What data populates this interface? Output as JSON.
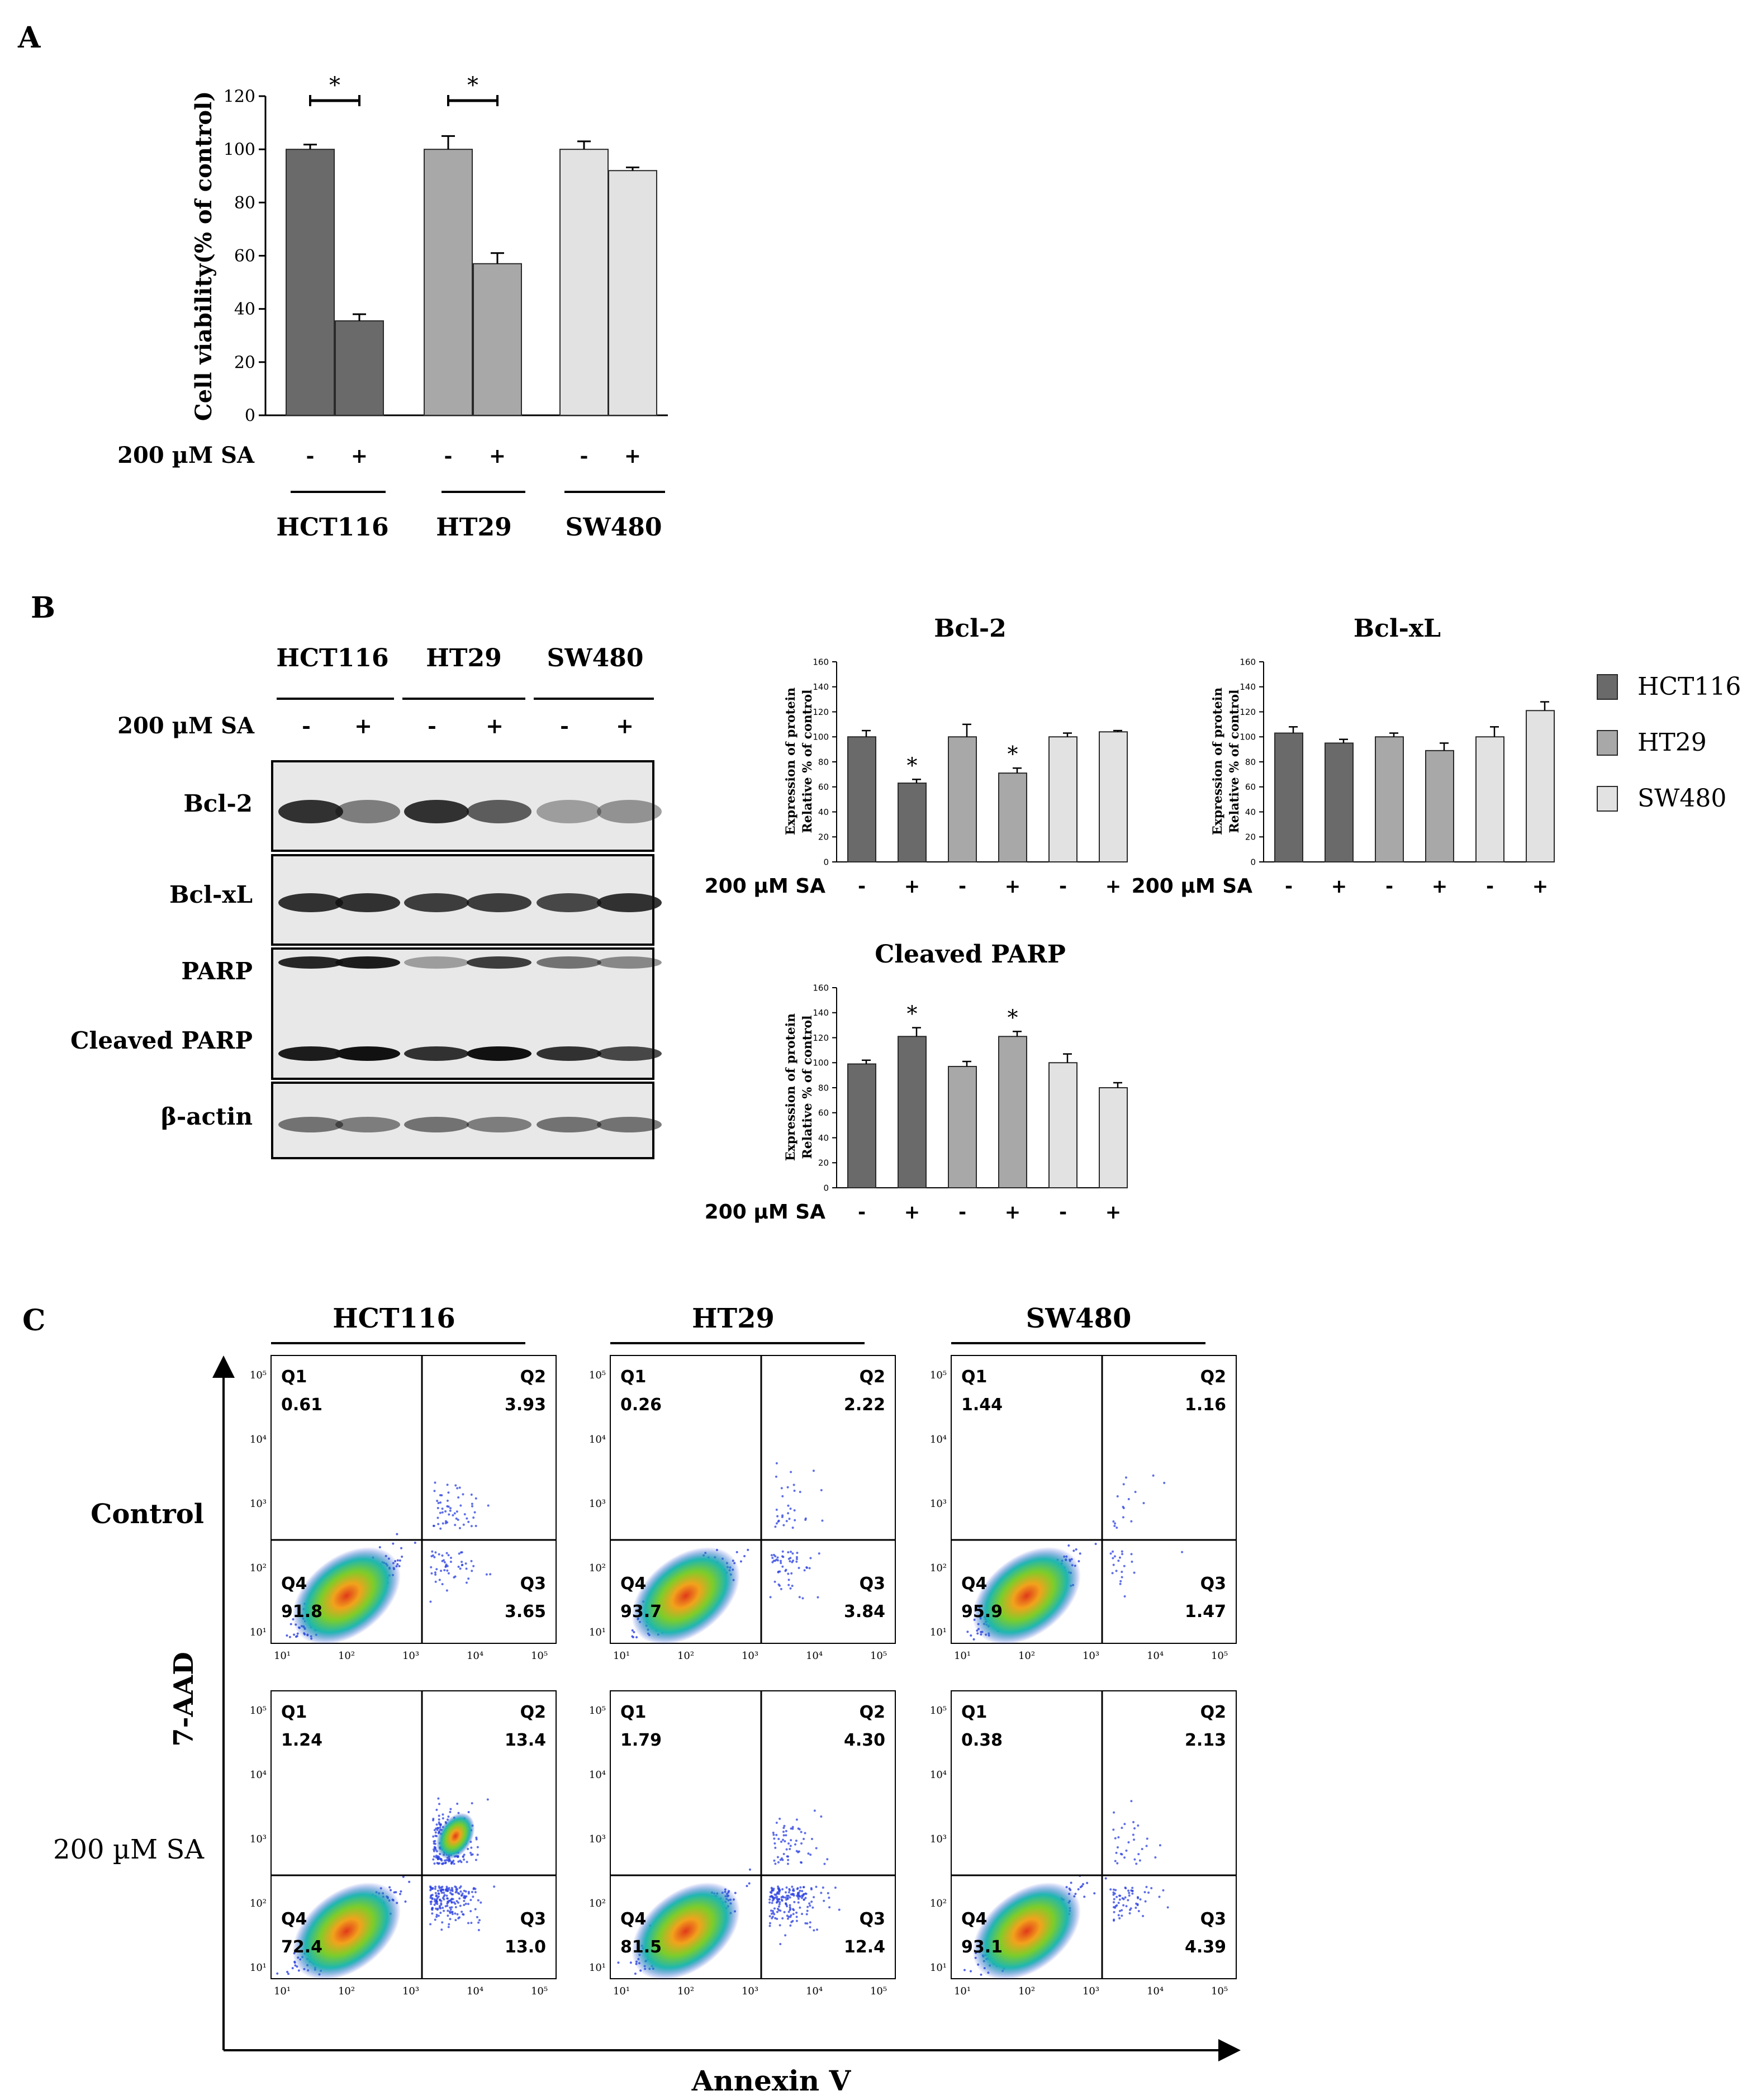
{
  "panels": {
    "a": "A",
    "b": "B",
    "c": "C"
  },
  "colors": {
    "dark": "#6a6a6a",
    "mid": "#a8a8a8",
    "light": "#e2e2e2",
    "bar_edge": "#2a2a2a"
  },
  "treatment_label": "200 µM SA",
  "treatment_label_blots": "200 μM SA",
  "signs": {
    "minus": "-",
    "plus": "+"
  },
  "significance_marker": "*",
  "cell_lines": [
    "HCT116",
    "HT29",
    "SW480"
  ],
  "blot": {
    "rows": [
      "Bcl-2",
      "Bcl-xL",
      "PARP",
      "Cleaved PARP",
      "β-actin"
    ]
  },
  "legend": [
    "HCT116",
    "HT29",
    "SW480"
  ],
  "chart_data": [
    {
      "id": "viability",
      "type": "bar",
      "title": "",
      "ylabel": "Cell viability(% of control)",
      "ylim": [
        0,
        120
      ],
      "yticks": [
        0,
        20,
        40,
        60,
        80,
        100,
        120
      ],
      "categories": [
        "HCT116 -",
        "HCT116 +",
        "HT29 -",
        "HT29 +",
        "SW480 -",
        "SW480 +"
      ],
      "values": [
        100,
        35.5,
        100,
        57,
        100,
        92
      ],
      "errors": [
        1.8,
        2.5,
        5,
        4,
        3,
        1.2
      ],
      "significant_pairs": [
        [
          0,
          1
        ],
        [
          2,
          3
        ]
      ]
    },
    {
      "id": "bcl2",
      "type": "bar",
      "title": "Bcl-2",
      "ylabel": "Expression of protein Relative % of control",
      "ylim": [
        0,
        160
      ],
      "yticks": [
        0,
        20,
        40,
        60,
        80,
        100,
        120,
        140,
        160
      ],
      "categories": [
        "HCT116 -",
        "HCT116 +",
        "HT29 -",
        "HT29 +",
        "SW480 -",
        "SW480 +"
      ],
      "values": [
        100,
        63,
        100,
        71,
        100,
        104
      ],
      "errors": [
        5,
        3,
        10,
        4,
        3,
        1
      ],
      "significant": [
        1,
        3
      ]
    },
    {
      "id": "bclxl",
      "type": "bar",
      "title": "Bcl-xL",
      "ylabel": "Expression of protein Relative % of control",
      "ylim": [
        0,
        160
      ],
      "yticks": [
        0,
        20,
        40,
        60,
        80,
        100,
        120,
        140,
        160
      ],
      "categories": [
        "HCT116 -",
        "HCT116 +",
        "HT29 -",
        "HT29 +",
        "SW480 -",
        "SW480 +"
      ],
      "values": [
        103,
        95,
        100,
        89,
        100,
        121
      ],
      "errors": [
        5,
        3,
        3,
        6,
        8,
        7
      ],
      "significant": []
    },
    {
      "id": "parp",
      "type": "bar",
      "title": "Cleaved PARP",
      "ylabel": "Expression of protein Relative % of control",
      "ylim": [
        0,
        160
      ],
      "yticks": [
        0,
        20,
        40,
        60,
        80,
        100,
        120,
        140,
        160
      ],
      "categories": [
        "HCT116 -",
        "HCT116 +",
        "HT29 -",
        "HT29 +",
        "SW480 -",
        "SW480 +"
      ],
      "values": [
        99,
        121,
        97,
        121,
        100,
        80
      ],
      "errors": [
        3,
        7,
        4,
        4,
        7,
        4
      ],
      "significant": [
        1,
        3
      ]
    }
  ],
  "flow": {
    "type": "scatter",
    "row_labels": [
      "Control",
      "200 µM SA"
    ],
    "column_headers": [
      "HCT116",
      "HT29",
      "SW480"
    ],
    "xlabel": "Annexin V",
    "ylabel": "7-AAD",
    "tick_labels": [
      "10¹",
      "10²",
      "10³",
      "10⁴",
      "10⁵"
    ],
    "quadrant_names": [
      "Q1",
      "Q2",
      "Q3",
      "Q4"
    ],
    "plots": [
      {
        "line": "HCT116",
        "condition": "Control",
        "Q1": "0.61",
        "Q2": "3.93",
        "Q3": "3.65",
        "Q4": "91.8"
      },
      {
        "line": "HT29",
        "condition": "Control",
        "Q1": "0.26",
        "Q2": "2.22",
        "Q3": "3.84",
        "Q4": "93.7"
      },
      {
        "line": "SW480",
        "condition": "Control",
        "Q1": "1.44",
        "Q2": "1.16",
        "Q3": "1.47",
        "Q4": "95.9"
      },
      {
        "line": "HCT116",
        "condition": "200 µM SA",
        "Q1": "1.24",
        "Q2": "13.4",
        "Q3": "13.0",
        "Q4": "72.4"
      },
      {
        "line": "HT29",
        "condition": "200 µM SA",
        "Q1": "1.79",
        "Q2": "4.30",
        "Q3": "12.4",
        "Q4": "81.5"
      },
      {
        "line": "SW480",
        "condition": "200 µM SA",
        "Q1": "0.38",
        "Q2": "2.13",
        "Q3": "4.39",
        "Q4": "93.1"
      }
    ]
  }
}
